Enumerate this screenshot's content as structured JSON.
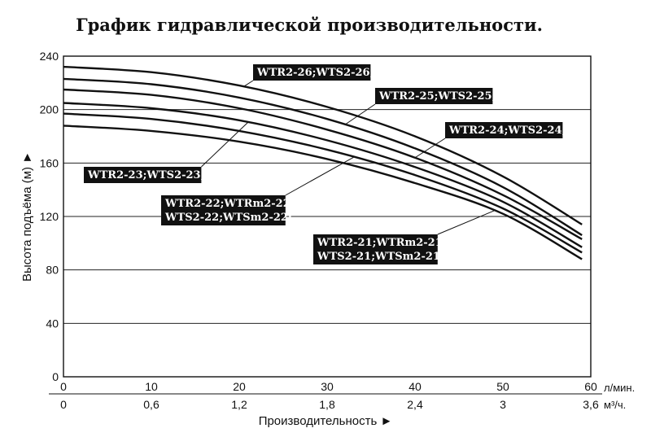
{
  "chart_data": {
    "type": "line",
    "title": "График гидравлической производительности.",
    "ylabel": "Высота подъёма (м) ►",
    "xlabel": "Производительность ►",
    "ylim": [
      0,
      240
    ],
    "xlim": [
      0,
      60
    ],
    "grid": "horizontal",
    "x_unit_primary": "л/мин.",
    "x_unit_secondary": "м³/ч.",
    "y_ticks": [
      "0",
      "40",
      "80",
      "120",
      "160",
      "200",
      "240"
    ],
    "x_ticks_primary": [
      "0",
      "10",
      "20",
      "30",
      "40",
      "50",
      "60"
    ],
    "x_ticks_secondary": [
      "0",
      "0,6",
      "1,2",
      "1,8",
      "2,4",
      "3",
      "3,6"
    ],
    "series": [
      {
        "name": "WTR2-26;WTS2-26;",
        "x": [
          0,
          10,
          20,
          30,
          40,
          50,
          59
        ],
        "y": [
          232,
          228,
          218,
          202,
          180,
          150,
          114
        ]
      },
      {
        "name": "WTR2-25;WTS2-25;",
        "x": [
          0,
          10,
          20,
          30,
          40,
          50,
          59
        ],
        "y": [
          223,
          219,
          209,
          193,
          171,
          142,
          106
        ]
      },
      {
        "name": "WTR2-24;WTS2-24;",
        "x": [
          0,
          10,
          20,
          30,
          40,
          50,
          59
        ],
        "y": [
          215,
          211,
          201,
          185,
          164,
          136,
          103
        ]
      },
      {
        "name": "WTR2-23;WTS2-23;",
        "x": [
          0,
          10,
          20,
          30,
          40,
          50,
          59
        ],
        "y": [
          205,
          201,
          192,
          177,
          157,
          131,
          97
        ]
      },
      {
        "name": "WTR2-22;WTRm2-22;\nWTS2-22;WTSm2-22;",
        "x": [
          0,
          10,
          20,
          30,
          40,
          50,
          59
        ],
        "y": [
          197,
          193,
          184,
          170,
          151,
          126,
          93
        ]
      },
      {
        "name": "WTR2-21;WTRm2-21;\nWTS2-21;WTSm2-21;",
        "x": [
          0,
          10,
          20,
          30,
          40,
          50,
          59
        ],
        "y": [
          188,
          184,
          176,
          163,
          145,
          122,
          88
        ]
      }
    ]
  }
}
